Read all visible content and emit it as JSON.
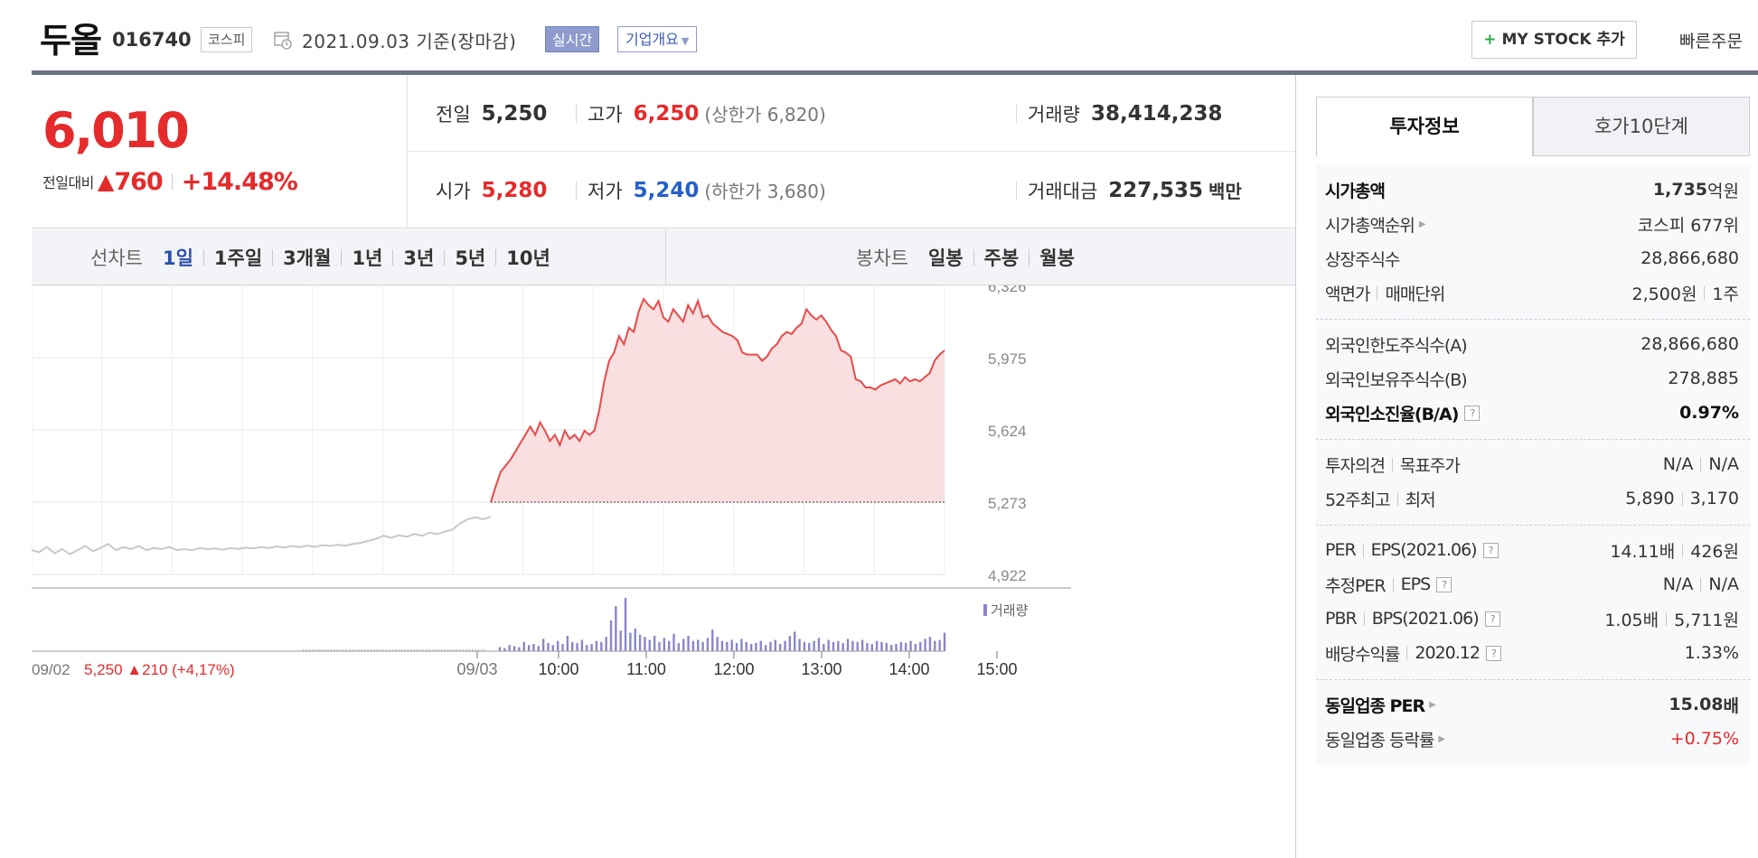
{
  "header": {
    "stock_name": "두올",
    "stock_code": "016740",
    "market": "코스피",
    "date": "2021.09.03 기준(장마감)",
    "realtime_label": "실시간",
    "company_overview_label": "기업개요",
    "my_stock_label": "MY STOCK 추가",
    "my_stock_plus": "+",
    "quick_order_label": "빠른주문"
  },
  "summary": {
    "current_price": "6,010",
    "change_label": "전일대비",
    "change_symbol": "▲",
    "change_value": "760",
    "change_percent": "+14.48%",
    "prev_close_label": "전일",
    "prev_close": "5,250",
    "high_label": "고가",
    "high": "6,250",
    "upper_limit": "(상한가 6,820)",
    "volume_label": "거래량",
    "volume": "38,414,238",
    "open_label": "시가",
    "open": "5,280",
    "low_label": "저가",
    "low": "5,240",
    "lower_limit": "(하한가 3,680)",
    "amount_label": "거래대금",
    "amount": "227,535",
    "amount_unit": "백만"
  },
  "chart_tabs": {
    "line_title": "선차트",
    "line_tabs": [
      "1일",
      "1주일",
      "3개월",
      "1년",
      "3년",
      "5년",
      "10년"
    ],
    "active_tab": "1일",
    "candle_title": "봉차트",
    "candle_tabs": [
      "일봉",
      "주봉",
      "월봉"
    ]
  },
  "chart_data": {
    "type": "line",
    "y_ticks": [
      "6,326",
      "5,975",
      "5,624",
      "5,273",
      "4,922"
    ],
    "ylim": [
      4922,
      6326
    ],
    "prev_close_ref": 5273,
    "volume_legend": "거래량",
    "prev_day_label": "09/02",
    "prev_day_summary": "5,250 ▲210 (+4,17%)",
    "x_ticks": [
      "09/03",
      "10:00",
      "11:00",
      "12:00",
      "13:00",
      "14:00",
      "15:00"
    ],
    "series": [
      {
        "name": "09/02",
        "color": "#c8c8c8",
        "values": [
          5040,
          5030,
          5055,
          5025,
          5045,
          5020,
          5040,
          5060,
          5035,
          5050,
          5070,
          5040,
          5055,
          5045,
          5060,
          5040,
          5050,
          5045,
          5055,
          5040,
          5045,
          5040,
          5050,
          5045,
          5048,
          5042,
          5050,
          5046,
          5052,
          5048,
          5055,
          5050,
          5058,
          5052,
          5060,
          5055,
          5062,
          5056,
          5064,
          5060,
          5066,
          5062,
          5070,
          5075,
          5085,
          5095,
          5110,
          5100,
          5112,
          5105,
          5118,
          5110,
          5125,
          5118,
          5130,
          5140,
          5170,
          5190,
          5200,
          5190,
          5202
        ]
      },
      {
        "name": "09/03",
        "color": "#e84a4a",
        "values": [
          5273,
          5350,
          5420,
          5450,
          5480,
          5520,
          5560,
          5600,
          5640,
          5600,
          5660,
          5620,
          5570,
          5600,
          5550,
          5620,
          5580,
          5600,
          5570,
          5620,
          5600,
          5620,
          5720,
          5860,
          5960,
          6000,
          6080,
          6040,
          6120,
          6100,
          6200,
          6260,
          6230,
          6210,
          6250,
          6170,
          6150,
          6210,
          6180,
          6150,
          6230,
          6190,
          6250,
          6170,
          6180,
          6140,
          6120,
          6100,
          6090,
          6080,
          6060,
          6000,
          5990,
          5990,
          5990,
          5960,
          5980,
          6020,
          6040,
          6080,
          6100,
          6090,
          6120,
          6140,
          6210,
          6180,
          6160,
          6180,
          6150,
          6110,
          6080,
          6010,
          6000,
          5980,
          5870,
          5860,
          5830,
          5830,
          5820,
          5840,
          5850,
          5860,
          5870,
          5850,
          5880,
          5860,
          5870,
          5860,
          5880,
          5900,
          5960,
          5990,
          6010
        ]
      }
    ],
    "volume": [
      4,
      3,
      6,
      5,
      4,
      9,
      6,
      7,
      5,
      12,
      8,
      6,
      10,
      7,
      15,
      9,
      8,
      11,
      6,
      7,
      10,
      9,
      14,
      30,
      44,
      20,
      52,
      18,
      22,
      16,
      14,
      11,
      15,
      9,
      13,
      10,
      17,
      8,
      12,
      15,
      10,
      11,
      9,
      13,
      21,
      14,
      10,
      9,
      11,
      8,
      12,
      9,
      7,
      8,
      10,
      6,
      9,
      11,
      7,
      10,
      15,
      19,
      12,
      9,
      8,
      10,
      13,
      7,
      11,
      9,
      10,
      8,
      12,
      10,
      9,
      11,
      8,
      7,
      10,
      9,
      8,
      6,
      7,
      9,
      8,
      10,
      7,
      9,
      12,
      14,
      10,
      11,
      18
    ]
  },
  "invest_panel": {
    "tab1": "투자정보",
    "tab2": "호가10단계",
    "rows": {
      "market_cap": {
        "label": "시가총액",
        "value": "1,735",
        "unit": "억원"
      },
      "market_cap_rank": {
        "label": "시가총액순위",
        "value": "코스피 677위"
      },
      "shares": {
        "label": "상장주식수",
        "value": "28,866,680"
      },
      "face_value": {
        "label": "액면가",
        "label2": "매매단위",
        "value": "2,500원",
        "value2": "1주"
      },
      "foreign_limit": {
        "label": "외국인한도주식수(A)",
        "value": "28,866,680"
      },
      "foreign_hold": {
        "label": "외국인보유주식수(B)",
        "value": "278,885"
      },
      "foreign_ratio": {
        "label": "외국인소진율(B/A)",
        "value": "0.97%"
      },
      "opinion": {
        "label": "투자의견",
        "label2": "목표주가",
        "value": "N/A",
        "value2": "N/A"
      },
      "week52": {
        "label": "52주최고",
        "label2": "최저",
        "value": "5,890",
        "value2": "3,170"
      },
      "per": {
        "label": "PER",
        "label2": "EPS(2021.06)",
        "value": "14.11배",
        "value2": "426원"
      },
      "est_per": {
        "label": "추정PER",
        "label2": "EPS",
        "value": "N/A",
        "value2": "N/A"
      },
      "pbr": {
        "label": "PBR",
        "label2": "BPS(2021.06)",
        "value": "1.05배",
        "value2": "5,711원"
      },
      "dividend": {
        "label": "배당수익률",
        "label2": "2020.12",
        "value": "1.33%"
      },
      "sector_per": {
        "label": "동일업종 PER",
        "value": "15.08",
        "unit": "배"
      },
      "sector_change": {
        "label": "동일업종 등락률",
        "value": "+0.75%"
      }
    }
  }
}
